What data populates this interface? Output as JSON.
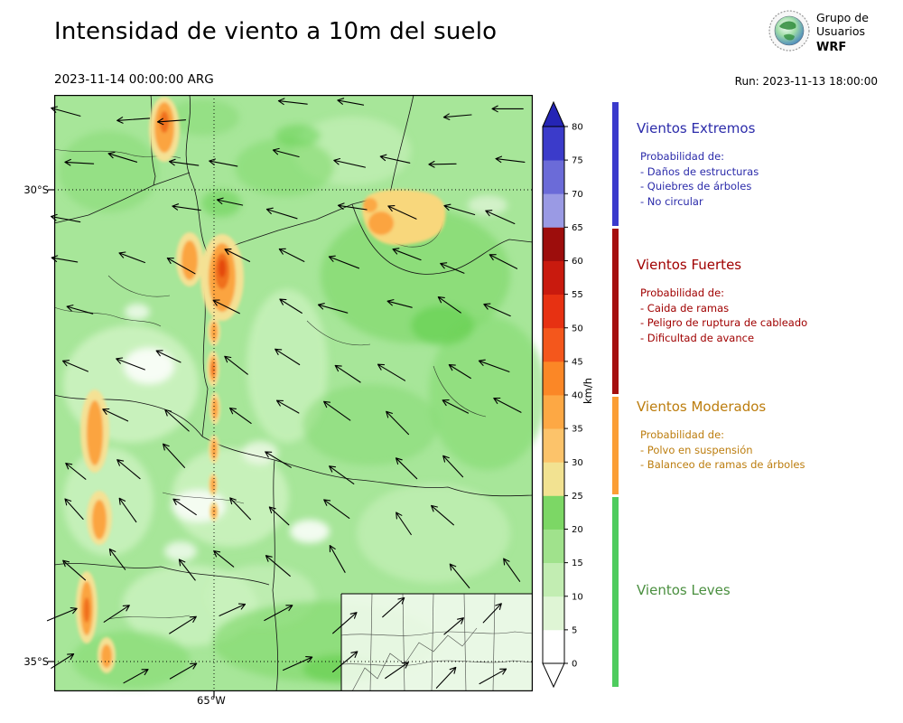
{
  "header": {
    "title": "Intensidad de viento a 10m del suelo",
    "valid_datetime": "2023-11-14 00:00:00 ARG",
    "run_label": "Run: 2023-11-13 18:00:00",
    "logo": {
      "line1": "Grupo de",
      "line2": "Usuarios",
      "line3": "WRF"
    }
  },
  "map": {
    "lat_label_top": "30°S",
    "lat_label_bottom": "35°S",
    "lon_label": "65°W"
  },
  "colorbar": {
    "unit": "km/h",
    "ticks": [
      0,
      5,
      10,
      15,
      20,
      25,
      30,
      35,
      40,
      45,
      50,
      55,
      60,
      65,
      70,
      75,
      80
    ],
    "segments": [
      {
        "from": 0,
        "to": 5,
        "color": "#ffffff"
      },
      {
        "from": 5,
        "to": 10,
        "color": "#dff5d5"
      },
      {
        "from": 10,
        "to": 15,
        "color": "#c2edb2"
      },
      {
        "from": 15,
        "to": 20,
        "color": "#a0e28c"
      },
      {
        "from": 20,
        "to": 25,
        "color": "#7cd765"
      },
      {
        "from": 25,
        "to": 30,
        "color": "#f2e291"
      },
      {
        "from": 30,
        "to": 35,
        "color": "#fcc36a"
      },
      {
        "from": 35,
        "to": 40,
        "color": "#fda844"
      },
      {
        "from": 40,
        "to": 45,
        "color": "#fb8726"
      },
      {
        "from": 45,
        "to": 50,
        "color": "#f4571c"
      },
      {
        "from": 50,
        "to": 55,
        "color": "#e73112"
      },
      {
        "from": 55,
        "to": 60,
        "color": "#c91a0e"
      },
      {
        "from": 60,
        "to": 65,
        "color": "#9d0d0c"
      },
      {
        "from": 65,
        "to": 70,
        "color": "#9a9ae4"
      },
      {
        "from": 70,
        "to": 75,
        "color": "#6b6bd8"
      },
      {
        "from": 75,
        "to": 80,
        "color": "#3b3bca"
      }
    ],
    "over_color": "#2525b5",
    "under_color": "#ffffff"
  },
  "legend": {
    "sections": [
      {
        "name": "Vientos Extremos",
        "strip_color": "#3a3acc",
        "text_color": "#2b2baa",
        "range_kmh": [
          65,
          80
        ],
        "prob_title": "Probabilidad de:",
        "items": [
          "- Daños de estructuras",
          "- Quiebres de árboles",
          "- No circular"
        ]
      },
      {
        "name": "Vientos Fuertes",
        "strip_color": "#a50f0f",
        "text_color": "#a00000",
        "range_kmh": [
          40,
          65
        ],
        "prob_title": "Probabilidad de:",
        "items": [
          "- Caida de ramas",
          "- Peligro de ruptura de cableado",
          "- Dificultad de avance"
        ]
      },
      {
        "name": "Vientos Moderados",
        "strip_color": "#fb9e35",
        "text_color": "#bc7d0e",
        "range_kmh": [
          25,
          40
        ],
        "prob_title": "Probabilidad de:",
        "items": [
          "- Polvo en suspensión",
          "- Balanceo de ramas de árboles"
        ]
      },
      {
        "name": "Vientos Leves",
        "strip_color": "#4ecc5e",
        "text_color": "#4a8f3f",
        "range_kmh": [
          0,
          25
        ],
        "prob_title": "",
        "items": []
      }
    ]
  }
}
